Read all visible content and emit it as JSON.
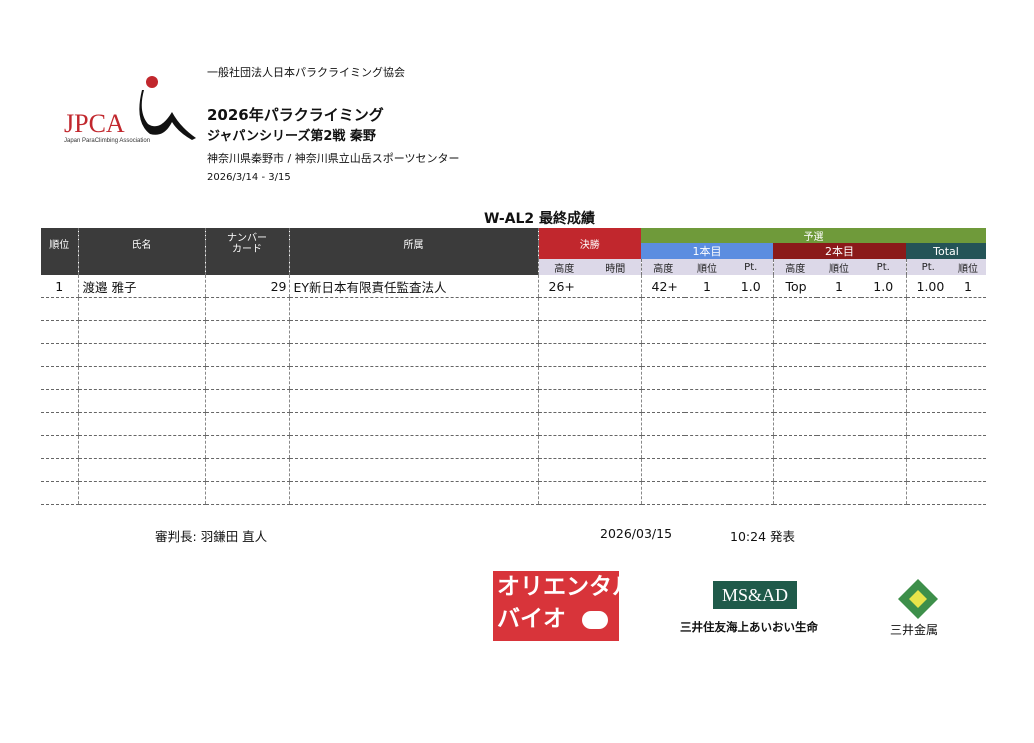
{
  "header": {
    "organization": "一般社団法人日本パラクライミング協会",
    "title_line1": "2026年パラクライミング",
    "title_line2": "ジャパンシリーズ第2戦 秦野",
    "venue": "神奈川県秦野市 / 神奈川県立山岳スポーツセンター",
    "dates": "2026/3/14 - 3/15",
    "logo_text": "JPCA",
    "logo_subtext": "Japan ParaClimbing Association"
  },
  "results_title": "W-AL2 最終成績",
  "columns": {
    "rank": "順位",
    "name": "氏名",
    "number_card": "ナンバーカード",
    "affiliation": "所属",
    "final": "決勝",
    "qualification": "予選",
    "round1": "1本目",
    "round2": "2本目",
    "total": "Total",
    "height": "高度",
    "time": "時間",
    "place": "順位",
    "pt": "Pt."
  },
  "colors": {
    "header_dark": "#3b3b3b",
    "final": "#c1272d",
    "qualification": "#6f9a3a",
    "round1": "#5b8de0",
    "round2": "#8b1a1a",
    "total": "#245457",
    "subheader": "#dcd8e8"
  },
  "rows": [
    {
      "rank": "1",
      "name": "渡邉 雅子",
      "number": "29",
      "affiliation": "EY新日本有限責任監査法人",
      "final_height": "26+",
      "final_time": "",
      "r1_height": "42+",
      "r1_place": "1",
      "r1_pt": "1.0",
      "r2_height": "Top",
      "r2_place": "1",
      "r2_pt": "1.0",
      "total_pt": "1.00",
      "total_place": "1"
    }
  ],
  "empty_rows": 9,
  "footer": {
    "chief_judge_label": "審判長:",
    "chief_judge": "羽鎌田 直人",
    "date": "2026/03/15",
    "time": "10:24",
    "announce": "発表"
  },
  "sponsors": [
    {
      "name": "オリエンタルバイオ",
      "line1": "オリエンタル",
      "line2": "バイオ"
    },
    {
      "name": "MS&AD",
      "sub": "三井住友海上あいおい生命"
    },
    {
      "name": "三井金属"
    }
  ]
}
